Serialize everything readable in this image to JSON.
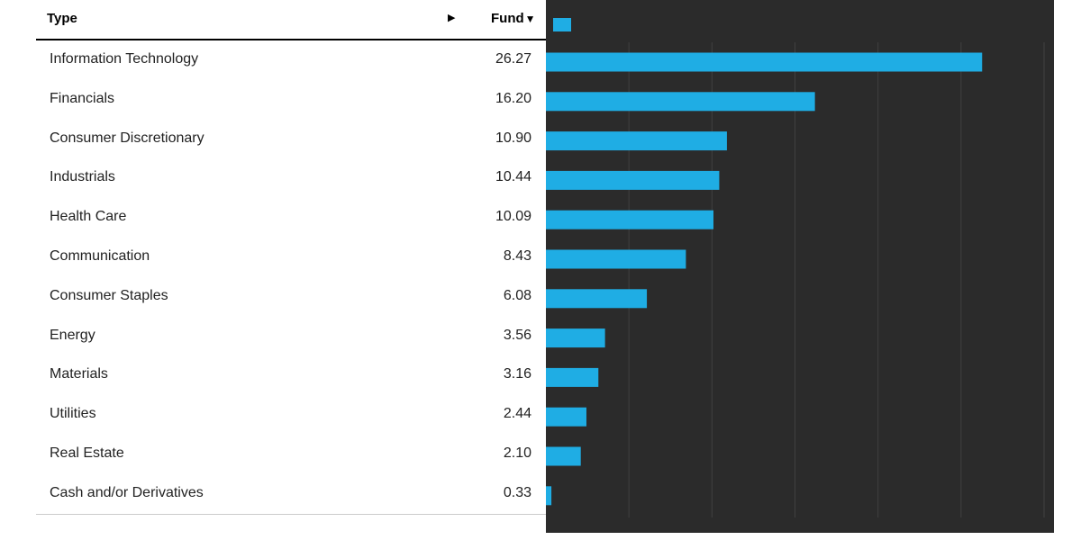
{
  "table": {
    "header_type": "Type",
    "header_fund": "Fund",
    "expand_icon": "triangle-right-icon",
    "sort_icon": "triangle-down-icon"
  },
  "colors": {
    "bar": "#1fade4",
    "panel": "#2b2b2b",
    "grid": "#404040"
  },
  "chart_data": {
    "type": "bar",
    "orientation": "horizontal",
    "categories": [
      "Information Technology",
      "Financials",
      "Consumer Discretionary",
      "Industrials",
      "Health Care",
      "Communication",
      "Consumer Staples",
      "Energy",
      "Materials",
      "Utilities",
      "Real Estate",
      "Cash and/or Derivatives"
    ],
    "values": [
      26.27,
      16.2,
      10.9,
      10.44,
      10.09,
      8.43,
      6.08,
      3.56,
      3.16,
      2.44,
      2.1,
      0.33
    ],
    "value_labels": [
      "26.27",
      "16.20",
      "10.90",
      "10.44",
      "10.09",
      "8.43",
      "6.08",
      "3.56",
      "3.16",
      "2.44",
      "2.10",
      "0.33"
    ],
    "series": [
      {
        "name": "Fund",
        "values": [
          26.27,
          16.2,
          10.9,
          10.44,
          10.09,
          8.43,
          6.08,
          3.56,
          3.16,
          2.44,
          2.1,
          0.33
        ]
      }
    ],
    "xlim": [
      0,
      30
    ],
    "grid": true,
    "legend": "top-left"
  }
}
